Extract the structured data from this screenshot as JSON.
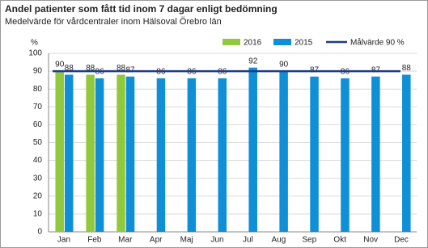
{
  "chart_data": {
    "type": "bar",
    "title": "Andel patienter som fått tid inom 7 dagar enligt bedömning",
    "subtitle": "Medelvärde för vårdcentraler inom Hälsoval Örebro län",
    "y_label": "%",
    "categories": [
      "Jan",
      "Feb",
      "Mar",
      "Apr",
      "Maj",
      "Jun",
      "Jul",
      "Aug",
      "Sep",
      "Okt",
      "Nov",
      "Dec"
    ],
    "series": [
      {
        "name": "2016",
        "color": "#92c83e",
        "values": [
          90,
          88,
          88,
          null,
          null,
          null,
          null,
          null,
          null,
          null,
          null,
          null
        ]
      },
      {
        "name": "2015",
        "color": "#0e8fd6",
        "values": [
          88,
          86,
          87,
          86,
          86,
          86,
          92,
          90,
          87,
          86,
          87,
          88
        ]
      }
    ],
    "target": {
      "name": "Målvärde 90 %",
      "value": 90,
      "color": "#1f3b87"
    },
    "ylim": [
      0,
      100
    ],
    "yticks": [
      0,
      10,
      20,
      30,
      40,
      50,
      60,
      70,
      80,
      90,
      100
    ],
    "grid": true
  }
}
